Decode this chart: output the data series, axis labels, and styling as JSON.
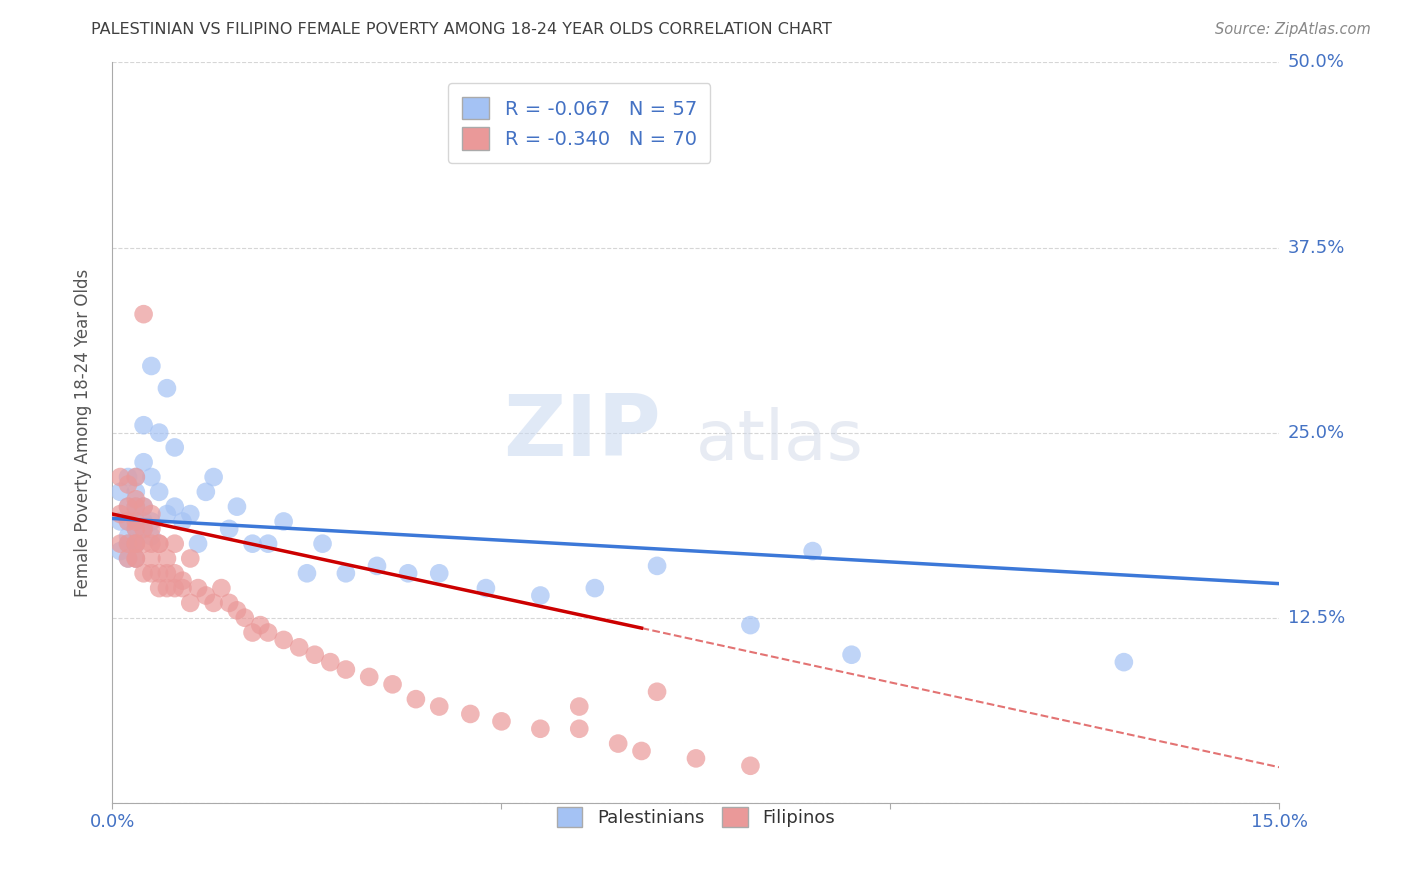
{
  "title": "PALESTINIAN VS FILIPINO FEMALE POVERTY AMONG 18-24 YEAR OLDS CORRELATION CHART",
  "source": "Source: ZipAtlas.com",
  "ylabel": "Female Poverty Among 18-24 Year Olds",
  "xlim": [
    0.0,
    0.15
  ],
  "ylim": [
    0.0,
    0.5
  ],
  "xticks": [
    0.0,
    0.05,
    0.1,
    0.15
  ],
  "xticklabels": [
    "0.0%",
    "",
    "",
    "15.0%"
  ],
  "yticks": [
    0.0,
    0.125,
    0.25,
    0.375,
    0.5
  ],
  "yticklabels": [
    "",
    "12.5%",
    "25.0%",
    "37.5%",
    "50.0%"
  ],
  "palestinian_R": "-0.067",
  "palestinian_N": "57",
  "filipino_R": "-0.340",
  "filipino_N": "70",
  "palestinian_color": "#a4c2f4",
  "filipino_color": "#ea9999",
  "trendline_palestinian_color": "#3c78d8",
  "trendline_filipino_color": "#cc0000",
  "background_color": "#ffffff",
  "grid_color": "#cccccc",
  "tick_label_color": "#4472c4",
  "title_color": "#404040",
  "watermark_zip": "ZIP",
  "watermark_atlas": "atlas",
  "palestinian_x": [
    0.001,
    0.001,
    0.001,
    0.002,
    0.002,
    0.002,
    0.002,
    0.002,
    0.002,
    0.003,
    0.003,
    0.003,
    0.003,
    0.003,
    0.003,
    0.003,
    0.003,
    0.003,
    0.004,
    0.004,
    0.004,
    0.004,
    0.004,
    0.005,
    0.005,
    0.005,
    0.005,
    0.006,
    0.006,
    0.007,
    0.007,
    0.008,
    0.008,
    0.009,
    0.01,
    0.011,
    0.012,
    0.013,
    0.015,
    0.016,
    0.018,
    0.02,
    0.022,
    0.025,
    0.027,
    0.03,
    0.034,
    0.038,
    0.042,
    0.048,
    0.055,
    0.062,
    0.07,
    0.082,
    0.09,
    0.095,
    0.13
  ],
  "palestinian_y": [
    0.19,
    0.21,
    0.17,
    0.22,
    0.18,
    0.2,
    0.175,
    0.19,
    0.165,
    0.21,
    0.185,
    0.2,
    0.175,
    0.19,
    0.22,
    0.175,
    0.19,
    0.165,
    0.2,
    0.23,
    0.255,
    0.185,
    0.19,
    0.19,
    0.295,
    0.22,
    0.18,
    0.21,
    0.25,
    0.28,
    0.195,
    0.24,
    0.2,
    0.19,
    0.195,
    0.175,
    0.21,
    0.22,
    0.185,
    0.2,
    0.175,
    0.175,
    0.19,
    0.155,
    0.175,
    0.155,
    0.16,
    0.155,
    0.155,
    0.145,
    0.14,
    0.145,
    0.16,
    0.12,
    0.17,
    0.1,
    0.095
  ],
  "filipino_x": [
    0.001,
    0.001,
    0.001,
    0.002,
    0.002,
    0.002,
    0.002,
    0.002,
    0.003,
    0.003,
    0.003,
    0.003,
    0.003,
    0.003,
    0.003,
    0.003,
    0.003,
    0.004,
    0.004,
    0.004,
    0.004,
    0.004,
    0.005,
    0.005,
    0.005,
    0.005,
    0.005,
    0.006,
    0.006,
    0.006,
    0.006,
    0.007,
    0.007,
    0.007,
    0.008,
    0.008,
    0.008,
    0.009,
    0.009,
    0.01,
    0.01,
    0.011,
    0.012,
    0.013,
    0.014,
    0.015,
    0.016,
    0.017,
    0.018,
    0.019,
    0.02,
    0.022,
    0.024,
    0.026,
    0.028,
    0.03,
    0.033,
    0.036,
    0.039,
    0.042,
    0.046,
    0.05,
    0.055,
    0.06,
    0.065,
    0.068,
    0.07,
    0.075,
    0.082,
    0.06
  ],
  "filipino_y": [
    0.22,
    0.195,
    0.175,
    0.215,
    0.19,
    0.2,
    0.175,
    0.165,
    0.205,
    0.22,
    0.185,
    0.175,
    0.19,
    0.165,
    0.175,
    0.2,
    0.165,
    0.33,
    0.2,
    0.175,
    0.155,
    0.185,
    0.195,
    0.175,
    0.165,
    0.155,
    0.185,
    0.175,
    0.145,
    0.175,
    0.155,
    0.165,
    0.145,
    0.155,
    0.175,
    0.145,
    0.155,
    0.15,
    0.145,
    0.165,
    0.135,
    0.145,
    0.14,
    0.135,
    0.145,
    0.135,
    0.13,
    0.125,
    0.115,
    0.12,
    0.115,
    0.11,
    0.105,
    0.1,
    0.095,
    0.09,
    0.085,
    0.08,
    0.07,
    0.065,
    0.06,
    0.055,
    0.05,
    0.065,
    0.04,
    0.035,
    0.075,
    0.03,
    0.025,
    0.05
  ],
  "trendline_pal_x0": 0.0,
  "trendline_pal_y0": 0.192,
  "trendline_pal_x1": 0.15,
  "trendline_pal_y1": 0.148,
  "trendline_fil_solid_x0": 0.0,
  "trendline_fil_solid_y0": 0.195,
  "trendline_fil_solid_x1": 0.068,
  "trendline_fil_solid_y1": 0.118,
  "trendline_fil_dash_x0": 0.068,
  "trendline_fil_dash_y0": 0.118,
  "trendline_fil_dash_x1": 0.15,
  "trendline_fil_dash_y1": 0.024
}
